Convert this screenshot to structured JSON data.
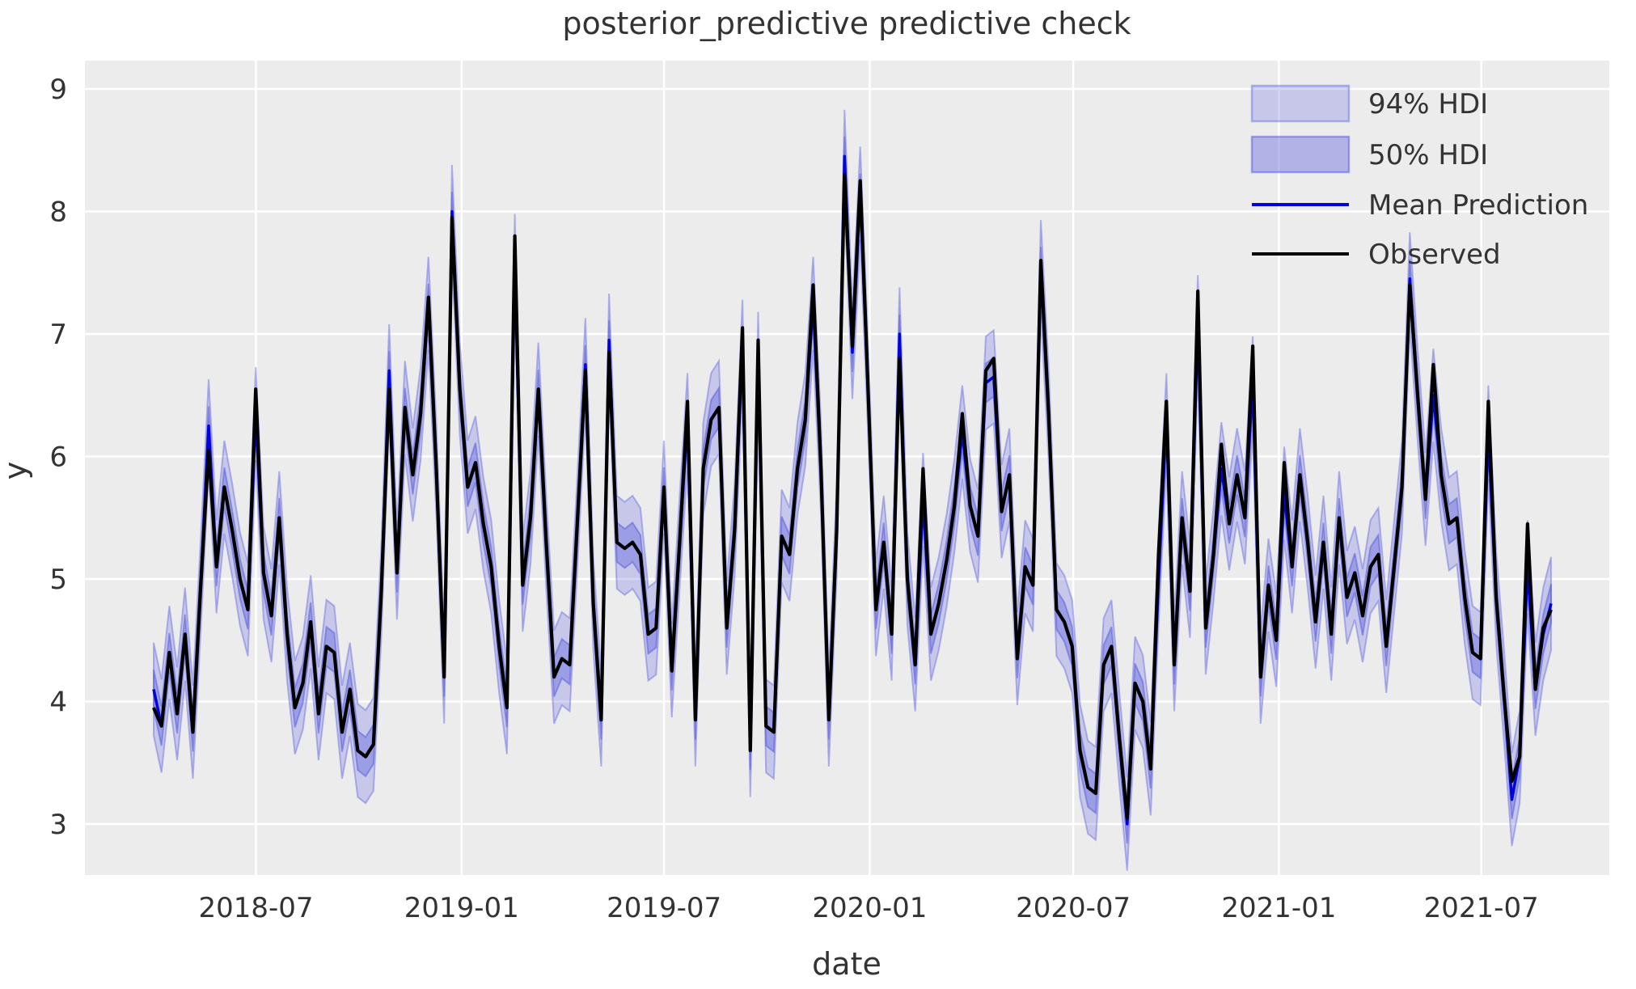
{
  "chart_data": {
    "type": "line",
    "title": "posterior_predictive predictive check",
    "xlabel": "date",
    "ylabel": "y",
    "x_tick_labels": [
      "2018-07",
      "2019-01",
      "2019-07",
      "2020-01",
      "2020-07",
      "2021-01",
      "2021-07"
    ],
    "y_tick_labels": [
      "3",
      "4",
      "5",
      "6",
      "7",
      "8",
      "9"
    ],
    "ylim": [
      2.6,
      9.2
    ],
    "x_start_date": "2018-04-01",
    "x_freq_days": 7,
    "grid": true,
    "legend_position": "upper right",
    "legend": [
      {
        "label": "94% HDI",
        "type": "band",
        "color": "#c6c8ef"
      },
      {
        "label": "50% HDI",
        "type": "band",
        "color": "#9fa3e8"
      },
      {
        "label": "Mean Prediction",
        "type": "line",
        "color": "#0202dd"
      },
      {
        "label": "Observed",
        "type": "line",
        "color": "#000000"
      }
    ],
    "bands": [
      {
        "name": "94% HDI",
        "center": "mean",
        "halfwidth": 0.38
      },
      {
        "name": "50% HDI",
        "center": "mean",
        "halfwidth": 0.16
      }
    ],
    "series": [
      {
        "name": "Observed",
        "color": "#000000",
        "values": [
          3.95,
          3.8,
          4.4,
          3.9,
          4.55,
          3.75,
          4.95,
          6.05,
          5.1,
          5.75,
          5.4,
          5.0,
          4.75,
          6.55,
          5.05,
          4.7,
          5.5,
          4.55,
          3.95,
          4.15,
          4.65,
          3.9,
          4.45,
          4.4,
          3.75,
          4.1,
          3.6,
          3.55,
          3.65,
          4.9,
          6.55,
          5.05,
          6.4,
          5.85,
          6.35,
          7.3,
          5.9,
          4.2,
          7.95,
          6.55,
          5.75,
          5.95,
          5.45,
          5.1,
          4.45,
          3.95,
          7.8,
          4.95,
          5.5,
          6.55,
          5.3,
          4.2,
          4.35,
          4.3,
          5.5,
          6.7,
          4.8,
          3.85,
          6.85,
          5.3,
          5.25,
          5.3,
          5.2,
          4.55,
          4.6,
          5.75,
          4.25,
          5.3,
          6.45,
          3.85,
          5.9,
          6.3,
          6.4,
          4.6,
          5.4,
          7.05,
          3.6,
          6.95,
          3.8,
          3.75,
          5.35,
          5.2,
          5.9,
          6.3,
          7.4,
          5.9,
          3.85,
          5.4,
          8.3,
          6.9,
          8.25,
          6.55,
          4.75,
          5.3,
          4.55,
          6.8,
          5.0,
          4.3,
          5.9,
          4.55,
          4.8,
          5.15,
          5.6,
          6.35,
          5.6,
          5.35,
          6.7,
          6.8,
          5.55,
          5.85,
          4.35,
          5.1,
          4.95,
          7.6,
          6.35,
          4.75,
          4.65,
          4.45,
          3.6,
          3.3,
          3.25,
          4.3,
          4.45,
          3.7,
          3.05,
          4.15,
          4.0,
          3.45,
          5.2,
          6.45,
          4.3,
          5.5,
          4.9,
          7.35,
          4.6,
          5.2,
          6.1,
          5.45,
          5.85,
          5.5,
          6.9,
          4.2,
          4.95,
          4.5,
          5.95,
          5.1,
          5.85,
          5.3,
          4.65,
          5.3,
          4.55,
          5.5,
          4.85,
          5.05,
          4.7,
          5.1,
          5.2,
          4.45,
          5.1,
          5.75,
          7.4,
          6.5,
          5.65,
          6.75,
          5.85,
          5.45,
          5.5,
          4.85,
          4.4,
          4.35,
          6.45,
          4.85,
          4.05,
          3.35,
          3.55,
          5.45,
          4.1,
          4.6,
          4.75
        ]
      },
      {
        "name": "Mean Prediction",
        "color": "#0202dd",
        "values": [
          4.1,
          3.8,
          4.4,
          3.9,
          4.55,
          3.75,
          4.95,
          6.25,
          5.1,
          5.75,
          5.4,
          5.0,
          4.75,
          6.35,
          5.05,
          4.7,
          5.5,
          4.55,
          3.95,
          4.15,
          4.65,
          3.9,
          4.45,
          4.4,
          3.75,
          4.1,
          3.6,
          3.55,
          3.65,
          4.9,
          6.7,
          5.05,
          6.4,
          5.85,
          6.35,
          7.25,
          5.9,
          4.2,
          8.0,
          6.55,
          5.75,
          5.95,
          5.45,
          5.1,
          4.45,
          3.95,
          7.6,
          4.95,
          5.5,
          6.55,
          5.3,
          4.2,
          4.35,
          4.3,
          5.5,
          6.75,
          4.8,
          3.85,
          6.95,
          5.3,
          5.25,
          5.3,
          5.2,
          4.55,
          4.6,
          5.75,
          4.25,
          5.3,
          6.3,
          3.85,
          5.9,
          6.3,
          6.4,
          4.6,
          5.4,
          6.9,
          3.6,
          6.8,
          3.8,
          3.75,
          5.35,
          5.2,
          5.9,
          6.3,
          7.25,
          5.9,
          3.85,
          5.4,
          8.45,
          6.85,
          8.15,
          6.55,
          4.75,
          5.3,
          4.55,
          7.0,
          5.0,
          4.3,
          5.65,
          4.55,
          4.8,
          5.15,
          5.6,
          6.2,
          5.6,
          5.35,
          6.6,
          6.65,
          5.55,
          5.85,
          4.35,
          5.1,
          4.95,
          7.55,
          6.35,
          4.75,
          4.65,
          4.45,
          3.6,
          3.3,
          3.25,
          4.3,
          4.45,
          3.7,
          3.0,
          4.15,
          4.0,
          3.45,
          5.0,
          6.3,
          4.3,
          5.5,
          4.9,
          7.1,
          4.6,
          5.2,
          5.9,
          5.45,
          5.85,
          5.5,
          6.6,
          4.2,
          4.95,
          4.5,
          5.7,
          5.1,
          5.85,
          5.3,
          4.65,
          5.3,
          4.55,
          5.5,
          4.85,
          5.05,
          4.7,
          5.1,
          5.2,
          4.45,
          5.1,
          5.75,
          7.45,
          6.5,
          5.65,
          6.5,
          5.85,
          5.45,
          5.5,
          4.85,
          4.4,
          4.35,
          6.2,
          4.85,
          4.05,
          3.2,
          3.55,
          5.1,
          4.1,
          4.55,
          4.8
        ]
      }
    ]
  },
  "colors": {
    "axes_background": "#ececec",
    "gridline": "#ffffff",
    "text": "#333333",
    "observed_line": "#000000",
    "mean_line": "#0202dd",
    "hdi94_fill": "rgba(100,105,225,0.28)",
    "hdi94_edge": "rgba(100,105,225,0.45)",
    "hdi50_fill": "rgba(95,100,225,0.42)",
    "hdi50_edge": "rgba(85,90,215,0.5)"
  }
}
